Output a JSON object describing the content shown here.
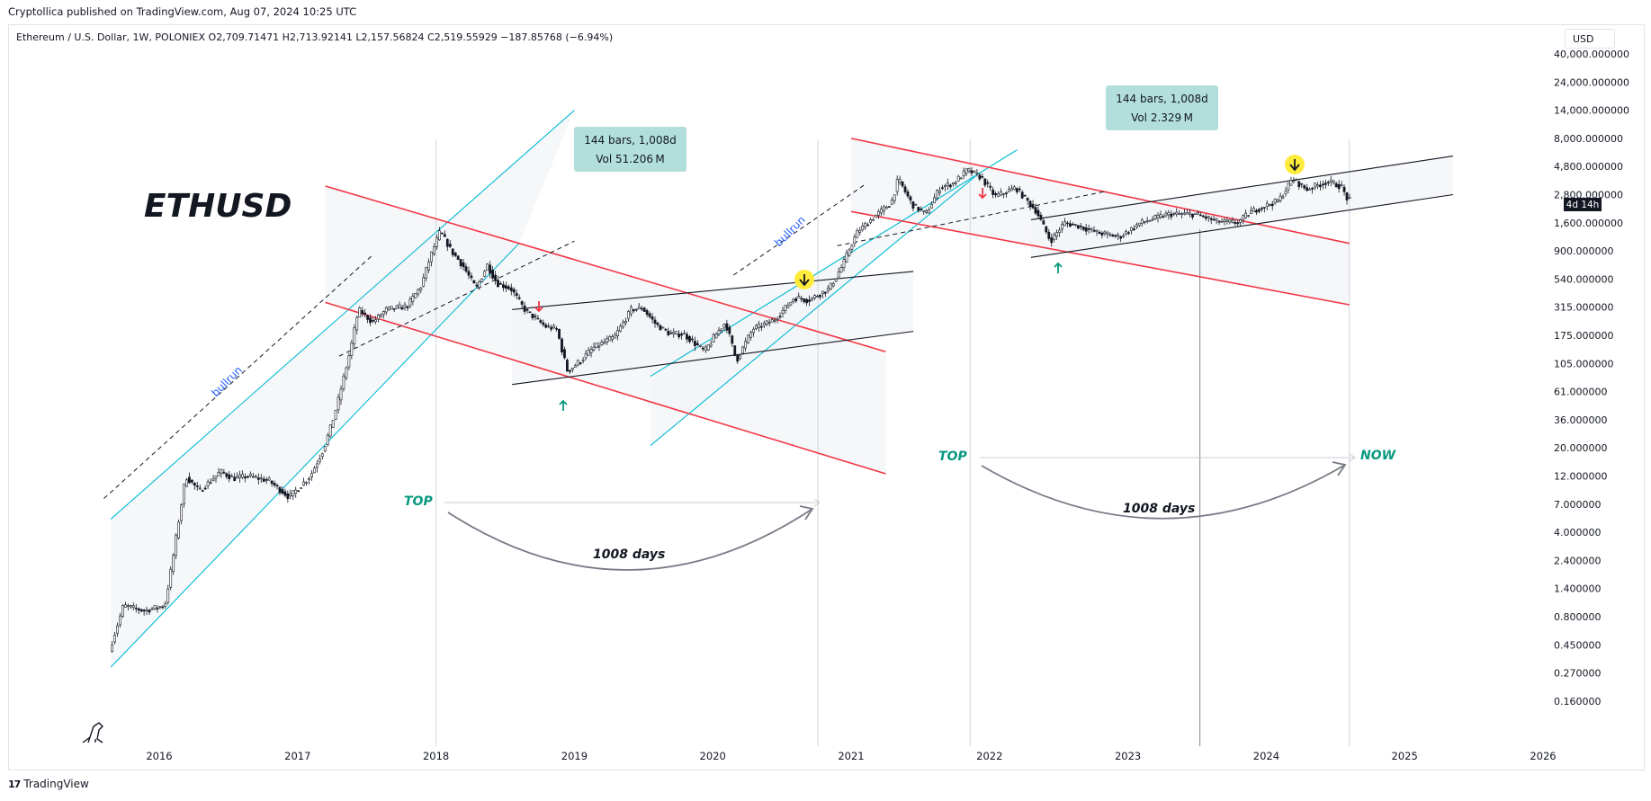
{
  "publisher": "Cryptollica published on TradingView.com, Aug 07, 2024 10:25 UTC",
  "symbol_line": "Ethereum / U.S. Dollar, 1W, POLONIEX  O2,709.71471  H2,713.92141  L2,157.56824  C2,519.55929  −187.85768 (−6.94%)",
  "currency": "USD",
  "footer": "TradingView",
  "colors": {
    "up": "#ffffff",
    "down": "#131722",
    "cyan": "#00bcd4",
    "red": "#f23645",
    "teal": "#089981",
    "yellow": "#ffeb3b",
    "measure_bg": "#b2dfdb",
    "blue_text": "#2962ff"
  },
  "chart_data": {
    "type": "candlestick",
    "title": "ETHUSD",
    "ylabel": "",
    "xlabel": "",
    "y_scale": "log",
    "y_ticks": [
      "40,000.000000",
      "24,000.000000",
      "14,000.000000",
      "8,000.000000",
      "4,800.000000",
      "2,800.000000",
      "1,600.000000",
      "900.000000",
      "540.000000",
      "315.000000",
      "175.000000",
      "105.000000",
      "61.000000",
      "36.000000",
      "20.000000",
      "12.000000",
      "7.000000",
      "4.000000",
      "2.400000",
      "1.400000",
      "0.800000",
      "0.450000",
      "0.270000",
      "0.160000"
    ],
    "x_ticks": [
      "2016",
      "2017",
      "2018",
      "2019",
      "2020",
      "2021",
      "2022",
      "2023",
      "2024",
      "2025",
      "2026"
    ],
    "price_badge": "4d 14h",
    "price_path": [
      {
        "x": 2015.65,
        "y": 0.4
      },
      {
        "x": 2015.75,
        "y": 1.0
      },
      {
        "x": 2015.9,
        "y": 0.9
      },
      {
        "x": 2016.05,
        "y": 1.0
      },
      {
        "x": 2016.12,
        "y": 3.0
      },
      {
        "x": 2016.2,
        "y": 12.0
      },
      {
        "x": 2016.3,
        "y": 9.0
      },
      {
        "x": 2016.45,
        "y": 13.0
      },
      {
        "x": 2016.55,
        "y": 11.5
      },
      {
        "x": 2016.65,
        "y": 12.0
      },
      {
        "x": 2016.8,
        "y": 11.0
      },
      {
        "x": 2016.95,
        "y": 8.0
      },
      {
        "x": 2017.1,
        "y": 12.0
      },
      {
        "x": 2017.2,
        "y": 20.0
      },
      {
        "x": 2017.3,
        "y": 50.0
      },
      {
        "x": 2017.4,
        "y": 150.0
      },
      {
        "x": 2017.45,
        "y": 300.0
      },
      {
        "x": 2017.55,
        "y": 230.0
      },
      {
        "x": 2017.65,
        "y": 300.0
      },
      {
        "x": 2017.8,
        "y": 320.0
      },
      {
        "x": 2017.9,
        "y": 470.0
      },
      {
        "x": 2017.95,
        "y": 700.0
      },
      {
        "x": 2018.04,
        "y": 1350.0
      },
      {
        "x": 2018.12,
        "y": 900.0
      },
      {
        "x": 2018.2,
        "y": 700.0
      },
      {
        "x": 2018.3,
        "y": 450.0
      },
      {
        "x": 2018.38,
        "y": 700.0
      },
      {
        "x": 2018.45,
        "y": 500.0
      },
      {
        "x": 2018.55,
        "y": 450.0
      },
      {
        "x": 2018.65,
        "y": 300.0
      },
      {
        "x": 2018.8,
        "y": 210.0
      },
      {
        "x": 2018.88,
        "y": 200.0
      },
      {
        "x": 2018.96,
        "y": 90.0
      },
      {
        "x": 2019.05,
        "y": 110.0
      },
      {
        "x": 2019.15,
        "y": 140.0
      },
      {
        "x": 2019.3,
        "y": 170.0
      },
      {
        "x": 2019.42,
        "y": 300.0
      },
      {
        "x": 2019.5,
        "y": 310.0
      },
      {
        "x": 2019.6,
        "y": 220.0
      },
      {
        "x": 2019.7,
        "y": 180.0
      },
      {
        "x": 2019.8,
        "y": 180.0
      },
      {
        "x": 2019.95,
        "y": 130.0
      },
      {
        "x": 2020.1,
        "y": 230.0
      },
      {
        "x": 2020.18,
        "y": 110.0
      },
      {
        "x": 2020.3,
        "y": 200.0
      },
      {
        "x": 2020.45,
        "y": 240.0
      },
      {
        "x": 2020.6,
        "y": 380.0
      },
      {
        "x": 2020.7,
        "y": 360.0
      },
      {
        "x": 2020.85,
        "y": 450.0
      },
      {
        "x": 2020.95,
        "y": 700.0
      },
      {
        "x": 2021.05,
        "y": 1300.0
      },
      {
        "x": 2021.15,
        "y": 1700.0
      },
      {
        "x": 2021.3,
        "y": 2400.0
      },
      {
        "x": 2021.35,
        "y": 3800.0
      },
      {
        "x": 2021.45,
        "y": 2300.0
      },
      {
        "x": 2021.55,
        "y": 1900.0
      },
      {
        "x": 2021.65,
        "y": 3200.0
      },
      {
        "x": 2021.75,
        "y": 3500.0
      },
      {
        "x": 2021.85,
        "y": 4500.0
      },
      {
        "x": 2021.95,
        "y": 3900.0
      },
      {
        "x": 2022.05,
        "y": 2700.0
      },
      {
        "x": 2022.2,
        "y": 3200.0
      },
      {
        "x": 2022.35,
        "y": 2000.0
      },
      {
        "x": 2022.45,
        "y": 1100.0
      },
      {
        "x": 2022.55,
        "y": 1600.0
      },
      {
        "x": 2022.65,
        "y": 1500.0
      },
      {
        "x": 2022.8,
        "y": 1300.0
      },
      {
        "x": 2022.95,
        "y": 1200.0
      },
      {
        "x": 2023.1,
        "y": 1600.0
      },
      {
        "x": 2023.3,
        "y": 1900.0
      },
      {
        "x": 2023.5,
        "y": 1900.0
      },
      {
        "x": 2023.65,
        "y": 1650.0
      },
      {
        "x": 2023.8,
        "y": 1600.0
      },
      {
        "x": 2023.9,
        "y": 2000.0
      },
      {
        "x": 2024.1,
        "y": 2500.0
      },
      {
        "x": 2024.2,
        "y": 3800.0
      },
      {
        "x": 2024.3,
        "y": 3100.0
      },
      {
        "x": 2024.45,
        "y": 3600.0
      },
      {
        "x": 2024.55,
        "y": 3300.0
      },
      {
        "x": 2024.6,
        "y": 2500.0
      }
    ],
    "channels": [
      {
        "kind": "cyan",
        "a": {
          "x": 2015.65,
          "y": 5.2
        },
        "b": {
          "x": 2019.0,
          "y": 14000.0
        }
      },
      {
        "kind": "cyan",
        "a": {
          "x": 2015.65,
          "y": 0.3
        },
        "b": {
          "x": 2018.6,
          "y": 1050.0
        }
      },
      {
        "kind": "cyan",
        "a": {
          "x": 2019.55,
          "y": 82.0
        },
        "b": {
          "x": 2022.2,
          "y": 6500.0
        }
      },
      {
        "kind": "cyan",
        "a": {
          "x": 2019.55,
          "y": 21.0
        },
        "b": {
          "x": 2021.9,
          "y": 4000.0
        }
      },
      {
        "kind": "red",
        "a": {
          "x": 2017.2,
          "y": 3300.0
        },
        "b": {
          "x": 2021.25,
          "y": 130.0
        }
      },
      {
        "kind": "red",
        "a": {
          "x": 2017.2,
          "y": 345.0
        },
        "b": {
          "x": 2021.25,
          "y": 12.5
        }
      },
      {
        "kind": "red",
        "a": {
          "x": 2021.0,
          "y": 8000.0
        },
        "b": {
          "x": 2024.6,
          "y": 1050.0
        }
      },
      {
        "kind": "red",
        "a": {
          "x": 2021.0,
          "y": 2000.0
        },
        "b": {
          "x": 2024.6,
          "y": 330.0
        }
      },
      {
        "kind": "black",
        "a": {
          "x": 2018.55,
          "y": 300.0
        },
        "b": {
          "x": 2021.45,
          "y": 620.0
        }
      },
      {
        "kind": "black",
        "a": {
          "x": 2018.55,
          "y": 70.0
        },
        "b": {
          "x": 2021.45,
          "y": 190.0
        }
      },
      {
        "kind": "black",
        "a": {
          "x": 2022.3,
          "y": 1700.0
        },
        "b": {
          "x": 2025.35,
          "y": 5800.0
        }
      },
      {
        "kind": "black",
        "a": {
          "x": 2022.3,
          "y": 800.0
        },
        "b": {
          "x": 2025.35,
          "y": 2800.0
        }
      }
    ],
    "dashed_lines": [
      {
        "a": {
          "x": 2015.6,
          "y": 7.8
        },
        "b": {
          "x": 2017.55,
          "y": 850.0
        }
      },
      {
        "a": {
          "x": 2017.3,
          "y": 120.0
        },
        "b": {
          "x": 2019.0,
          "y": 1100.0
        }
      },
      {
        "a": {
          "x": 2020.15,
          "y": 580.0
        },
        "b": {
          "x": 2021.1,
          "y": 3400.0
        }
      },
      {
        "a": {
          "x": 2020.9,
          "y": 1000.0
        },
        "b": {
          "x": 2022.85,
          "y": 3000.0
        }
      }
    ],
    "annotations": {
      "ethusd_label": "ETHUSD",
      "bullrun_1": "bullrun",
      "bullrun_2": "bullrun",
      "top_1": "TOP",
      "top_2": "TOP",
      "days_1": "1008 days",
      "days_2": "1008 days",
      "now": "NOW",
      "measure_1": {
        "line1": "144 bars, 1,008d",
        "line2": "Vol 51.206 M"
      },
      "measure_2": {
        "line1": "144 bars, 1,008d",
        "line2": "Vol 2.329 M"
      }
    }
  }
}
